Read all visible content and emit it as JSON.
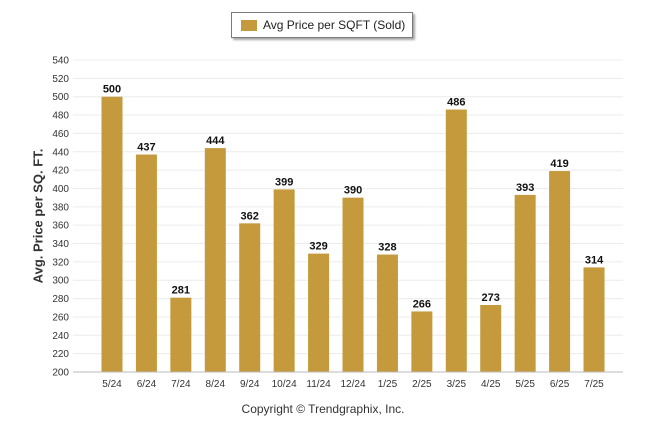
{
  "legend": {
    "label": "Avg Price per SQFT (Sold)",
    "color": "#c49a3c"
  },
  "copyright": "Copyright © Trendgraphix, Inc.",
  "chart_data": {
    "type": "bar",
    "title": "",
    "xlabel": "",
    "ylabel": "Avg. Price per SQ. FT.",
    "ylim": [
      200,
      540
    ],
    "ytick_step": 20,
    "grid": true,
    "legend_position": "top-center",
    "bar_color": "#c49a3c",
    "categories": [
      "5/24",
      "6/24",
      "7/24",
      "8/24",
      "9/24",
      "10/24",
      "11/24",
      "12/24",
      "1/25",
      "2/25",
      "3/25",
      "4/25",
      "5/25",
      "6/25",
      "7/25"
    ],
    "series": [
      {
        "name": "Avg Price per SQFT (Sold)",
        "values": [
          500,
          437,
          281,
          444,
          362,
          399,
          329,
          390,
          328,
          266,
          486,
          273,
          393,
          419,
          314
        ]
      }
    ]
  }
}
